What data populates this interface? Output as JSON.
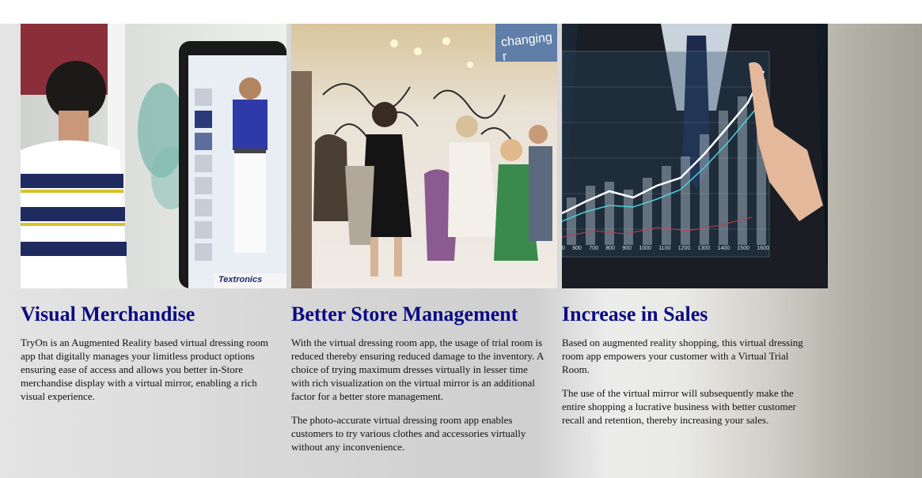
{
  "columns": [
    {
      "heading": "Visual Merchandise",
      "paragraphs": [
        "TryOn is an Augmented Reality based virtual dressing room app that digitally manages your limitless product options ensuring ease of access and allows you better in-Store merchandise display with a virtual mirror, enabling a rich visual experience."
      ],
      "image_brand": "Textronics"
    },
    {
      "heading": "Better Store Management",
      "paragraphs": [
        "With the virtual dressing room app, the usage of trial room is reduced thereby ensuring reduced damage to the inventory. A choice of trying maximum dresses virtually in lesser time with rich visualization on the virtual mirror is an additional factor for a better store management.",
        "The photo-accurate virtual dressing room app enables customers to try various clothes and accessories virtually without any inconvenience."
      ],
      "image_sign": "changing r"
    },
    {
      "heading": "Increase in Sales",
      "paragraphs": [
        "Based on augmented reality shopping, this virtual dressing room app empowers your customer with a Virtual Trial Room.",
        "The use of the virtual mirror will subsequently make the entire shopping a lucrative business with better customer recall and retention, thereby increasing your sales."
      ],
      "chart_ticks": [
        "0",
        "600",
        "700",
        "800",
        "900",
        "1000",
        "1100",
        "1200",
        "1300",
        "1400",
        "1500",
        "1600"
      ]
    }
  ],
  "colors": {
    "heading": "#0b0b84",
    "text": "#111111"
  }
}
